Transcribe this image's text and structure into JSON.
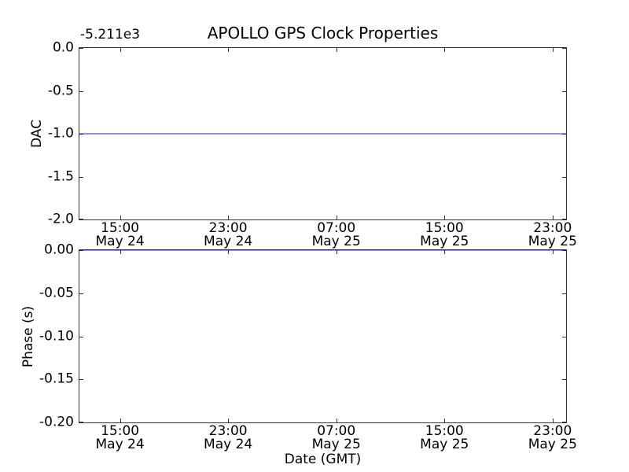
{
  "figure": {
    "background": "#ffffff",
    "axis_color": "#333333",
    "line_color": "#0000ff"
  },
  "x_axis": {
    "label": "Date (GMT)",
    "range_hours": [
      0,
      36
    ],
    "ticks": [
      {
        "hour": 3,
        "time": "15:00",
        "date": "May 24"
      },
      {
        "hour": 11,
        "time": "23:00",
        "date": "May 24"
      },
      {
        "hour": 19,
        "time": "07:00",
        "date": "May 25"
      },
      {
        "hour": 27,
        "time": "15:00",
        "date": "May 25"
      },
      {
        "hour": 35,
        "time": "23:00",
        "date": "May 25"
      }
    ]
  },
  "chart_data": [
    {
      "type": "line",
      "title": "APOLLO GPS Clock Properties",
      "ylabel": "DAC",
      "offset_text": "-5.211e3",
      "ylim": [
        -2.0,
        0.0
      ],
      "ytick_labels": [
        "0.0",
        "-0.5",
        "-1.0",
        "-1.5",
        "-2.0"
      ],
      "series": [
        {
          "name": "DAC",
          "style": "constant-horizontal-line",
          "value_displayed": -1.0,
          "axis_offset": "-5.211e3"
        }
      ],
      "grid": false,
      "legend": false
    },
    {
      "type": "line",
      "title": "",
      "ylabel": "Phase (s)",
      "offset_text": "",
      "ylim": [
        -0.2,
        0.0
      ],
      "ytick_labels": [
        "0.00",
        "-0.05",
        "-0.10",
        "-0.15",
        "-0.20"
      ],
      "series": [
        {
          "name": "Phase (s)",
          "style": "constant-horizontal-line",
          "value_displayed": 0.0
        }
      ],
      "grid": false,
      "legend": false
    }
  ]
}
